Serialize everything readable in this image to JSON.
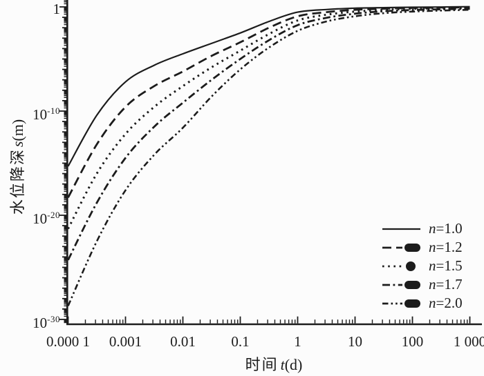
{
  "figure": {
    "background": "#fcfcfc",
    "ink": "#1c1c1c"
  },
  "axes": {
    "x": {
      "title_cn": "时间",
      "title_var": "t",
      "title_unit": "(d)",
      "scale": "log",
      "tick_labels": [
        "0.000 1",
        "0.001",
        "0.01",
        "0.1",
        "1",
        "10",
        "100",
        "1 000"
      ],
      "tick_log_values": [
        -4,
        -3,
        -2,
        -1,
        0,
        1,
        2,
        3
      ]
    },
    "y": {
      "title_cn": "水位降深",
      "title_var": "s",
      "title_unit": "(m)",
      "scale": "log",
      "tick_labels": [
        {
          "text": "1",
          "sup": ""
        },
        {
          "text": "10",
          "sup": "-10"
        },
        {
          "text": "10",
          "sup": "-20"
        },
        {
          "text": "10",
          "sup": "-30"
        }
      ],
      "tick_log_values": [
        0,
        -10,
        -20,
        -30
      ]
    }
  },
  "legend": {
    "items": [
      {
        "var": "n",
        "rest": "=1.0",
        "style": "solid",
        "blob": "none"
      },
      {
        "var": "n",
        "rest": "=1.2",
        "style": "long-dash",
        "blob": "pill"
      },
      {
        "var": "n",
        "rest": "=1.5",
        "style": "dot",
        "blob": "circle"
      },
      {
        "var": "n",
        "rest": "=1.7",
        "style": "dash-dot",
        "blob": "pill"
      },
      {
        "var": "n",
        "rest": "=2.0",
        "style": "dash-dot-dot",
        "blob": "pill"
      }
    ]
  },
  "chart_data": {
    "type": "line",
    "title": "",
    "xlabel": "时间 t(d)",
    "ylabel": "水位降深 s(m)",
    "x_scale": "log",
    "y_scale": "log",
    "xlim": [
      0.0001,
      1000
    ],
    "ylim": [
      1e-30,
      1
    ],
    "grid": false,
    "legend_position": "lower right",
    "log10_t": [
      -4,
      -3.5,
      -3,
      -2.5,
      -2,
      -1.5,
      -1,
      -0.5,
      0,
      0.5,
      1,
      1.5,
      2,
      2.5,
      3
    ],
    "series": [
      {
        "name": "n=1.0",
        "style": "solid",
        "log10_s": [
          -15.3,
          -10.4,
          -7.2,
          -5.6,
          -4.5,
          -3.5,
          -2.5,
          -1.4,
          -0.5,
          -0.25,
          -0.12,
          -0.07,
          -0.03,
          -0.01,
          0.02
        ]
      },
      {
        "name": "n=1.2",
        "style": "long-dash",
        "log10_s": [
          -18.3,
          -13.2,
          -9.6,
          -7.6,
          -6.2,
          -4.7,
          -3.4,
          -2.0,
          -0.9,
          -0.5,
          -0.28,
          -0.17,
          -0.1,
          -0.06,
          -0.04
        ]
      },
      {
        "name": "n=1.5",
        "style": "dot",
        "log10_s": [
          -21.3,
          -16.0,
          -12.2,
          -9.6,
          -7.6,
          -5.8,
          -4.2,
          -2.6,
          -1.3,
          -0.75,
          -0.45,
          -0.28,
          -0.18,
          -0.13,
          -0.1
        ]
      },
      {
        "name": "n=1.7",
        "style": "dash-dot",
        "log10_s": [
          -24.3,
          -18.8,
          -14.5,
          -11.5,
          -9.2,
          -7.0,
          -5.0,
          -3.2,
          -1.75,
          -1.05,
          -0.65,
          -0.42,
          -0.3,
          -0.23,
          -0.18
        ]
      },
      {
        "name": "n=2.0",
        "style": "dash-dot-dot",
        "log10_s": [
          -28.7,
          -22.5,
          -17.6,
          -14.2,
          -11.6,
          -8.6,
          -6.0,
          -3.9,
          -2.3,
          -1.4,
          -0.9,
          -0.6,
          -0.45,
          -0.35,
          -0.28
        ]
      }
    ]
  }
}
